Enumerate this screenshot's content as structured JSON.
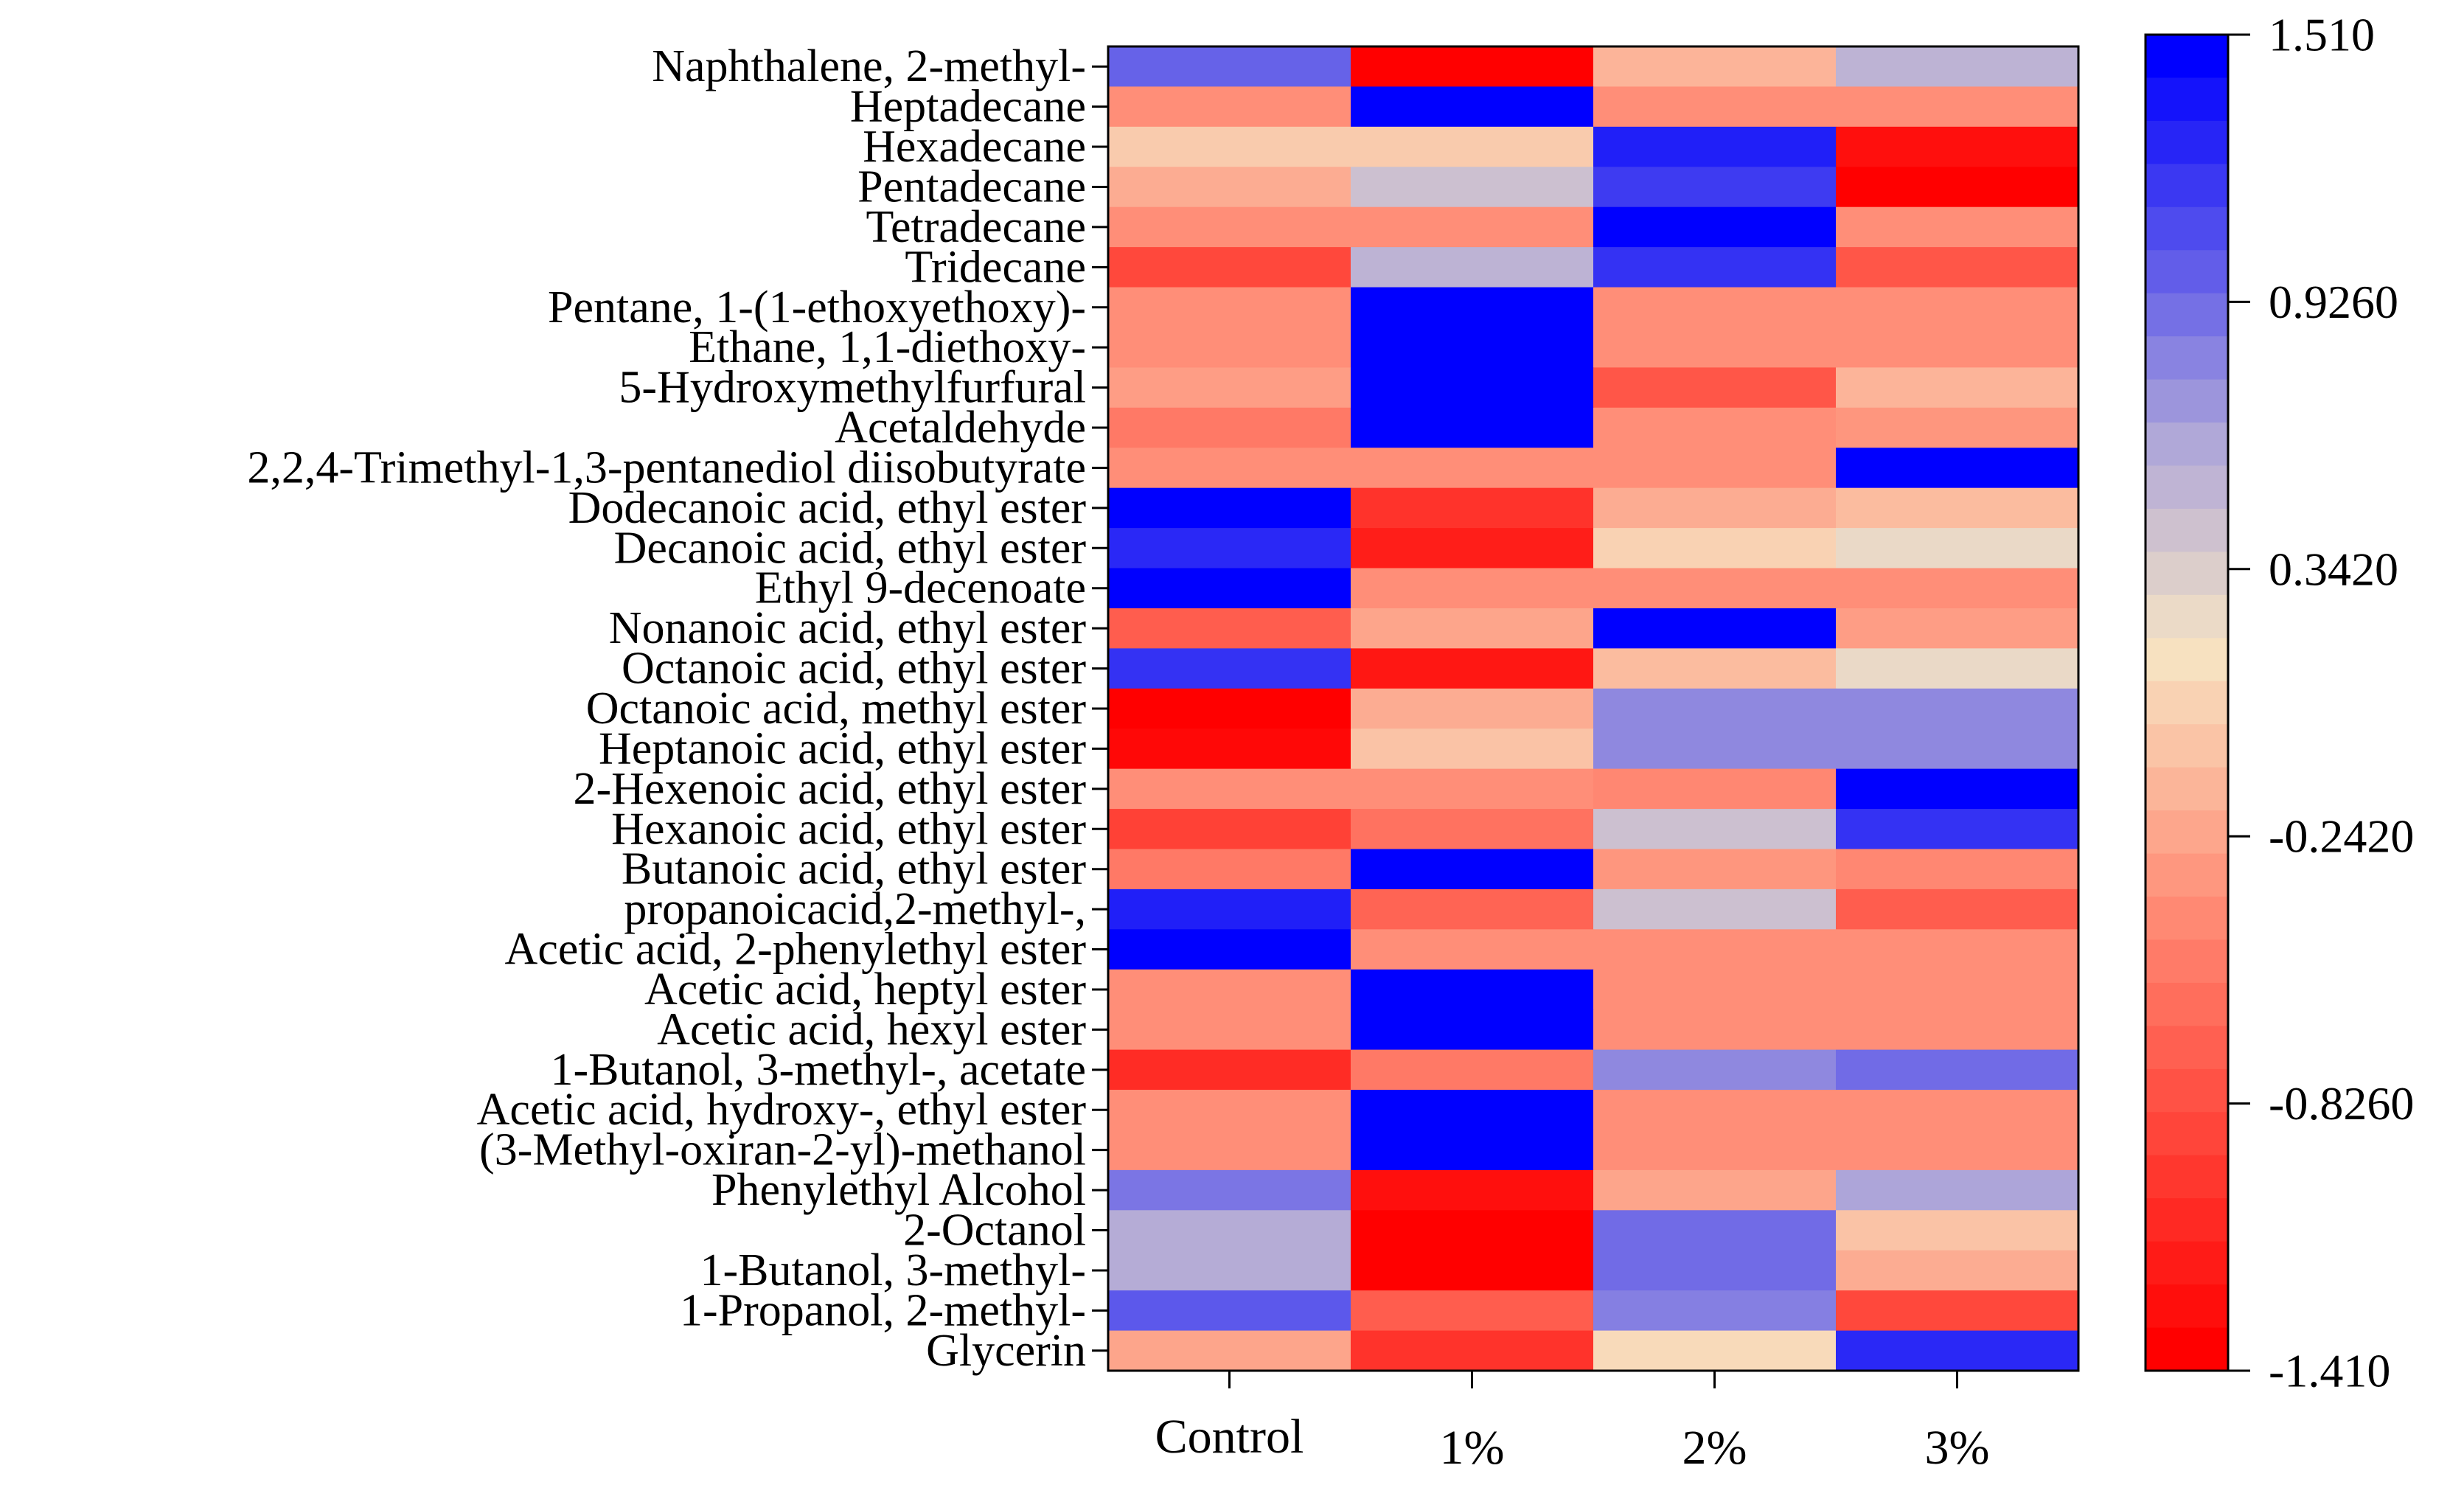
{
  "chart_data": {
    "type": "heatmap",
    "title": "",
    "xlabel": "",
    "ylabel": "",
    "categories": [
      "Control",
      "1%",
      "2%",
      "3%"
    ],
    "rows": [
      "Naphthalene, 2-methyl-",
      "Heptadecane",
      "Hexadecane",
      "Pentadecane",
      "Tetradecane",
      "Tridecane",
      "Pentane, 1-(1-ethoxyethoxy)-",
      "Ethane, 1,1-diethoxy-",
      "5-Hydroxymethylfurfural",
      "Acetaldehyde",
      "2,2,4-Trimethyl-1,3-pentanediol diisobutyrate",
      "Dodecanoic acid, ethyl ester",
      "Decanoic acid, ethyl ester",
      "Ethyl 9-decenoate",
      "Nonanoic acid, ethyl ester",
      "Octanoic acid, ethyl ester",
      "Octanoic acid, methyl ester",
      "Heptanoic acid, ethyl ester",
      "2-Hexenoic acid, ethyl ester",
      "Hexanoic acid, ethyl ester",
      "Butanoic acid, ethyl ester",
      "propanoicacid,2-methyl-,",
      "Acetic acid, 2-phenylethyl ester",
      "Acetic acid, heptyl ester",
      "Acetic acid, hexyl ester",
      "1-Butanol, 3-methyl-, acetate",
      "Acetic acid, hydroxy-, ethyl ester",
      "(3-Methyl-oxiran-2-yl)-methanol",
      "Phenylethyl Alcohol",
      "2-Octanol",
      "1-Butanol, 3-methyl-",
      "1-Propanol, 2-methyl-",
      "Glycerin"
    ],
    "values": [
      [
        1.0,
        -1.41,
        -0.15,
        0.55
      ],
      [
        -0.4,
        1.51,
        -0.4,
        -0.4
      ],
      [
        0.0,
        0.0,
        1.35,
        -1.3
      ],
      [
        -0.2,
        0.45,
        1.2,
        -1.41
      ],
      [
        -0.4,
        -0.4,
        1.51,
        -0.4
      ],
      [
        -0.9,
        0.55,
        1.25,
        -0.8
      ],
      [
        -0.4,
        1.51,
        -0.4,
        -0.4
      ],
      [
        -0.4,
        1.51,
        -0.4,
        -0.4
      ],
      [
        -0.3,
        1.51,
        -0.8,
        -0.15
      ],
      [
        -0.55,
        1.51,
        -0.4,
        -0.35
      ],
      [
        -0.4,
        -0.4,
        -0.4,
        1.51
      ],
      [
        1.51,
        -1.05,
        -0.2,
        -0.1
      ],
      [
        1.3,
        -1.2,
        0.05,
        0.25
      ],
      [
        1.51,
        -0.4,
        -0.4,
        -0.4
      ],
      [
        -0.75,
        -0.25,
        1.51,
        -0.3
      ],
      [
        1.25,
        -1.25,
        -0.1,
        0.25
      ],
      [
        -1.41,
        -0.2,
        0.8,
        0.8
      ],
      [
        -1.35,
        -0.05,
        0.8,
        0.8
      ],
      [
        -0.4,
        -0.4,
        -0.45,
        1.51
      ],
      [
        -0.95,
        -0.6,
        0.45,
        1.25
      ],
      [
        -0.55,
        1.51,
        -0.35,
        -0.45
      ],
      [
        1.35,
        -0.7,
        0.45,
        -0.75
      ],
      [
        1.51,
        -0.4,
        -0.4,
        -0.4
      ],
      [
        -0.4,
        1.51,
        -0.4,
        -0.4
      ],
      [
        -0.4,
        1.51,
        -0.4,
        -0.4
      ],
      [
        -1.1,
        -0.55,
        0.8,
        0.95
      ],
      [
        -0.4,
        1.51,
        -0.4,
        -0.4
      ],
      [
        -0.4,
        1.51,
        -0.4,
        -0.4
      ],
      [
        0.9,
        -1.3,
        -0.25,
        0.65
      ],
      [
        0.6,
        -1.41,
        0.95,
        -0.05
      ],
      [
        0.6,
        -1.41,
        0.95,
        -0.2
      ],
      [
        1.05,
        -0.75,
        0.85,
        -0.9
      ],
      [
        -0.25,
        -1.05,
        0.1,
        1.3
      ]
    ],
    "colorbar": {
      "min": -1.41,
      "max": 1.51,
      "tick_labels": [
        "1.510",
        "0.9260",
        "0.3420",
        "-0.2420",
        "-0.8260",
        "-1.410"
      ],
      "colors": {
        "low": "#ff0000",
        "low_mid": "#ff9079",
        "mid": "#f7e4c3",
        "high_mid": "#b0a8d8",
        "high": "#0000ff"
      },
      "steps": 31
    },
    "grid": false,
    "legend": "right"
  }
}
